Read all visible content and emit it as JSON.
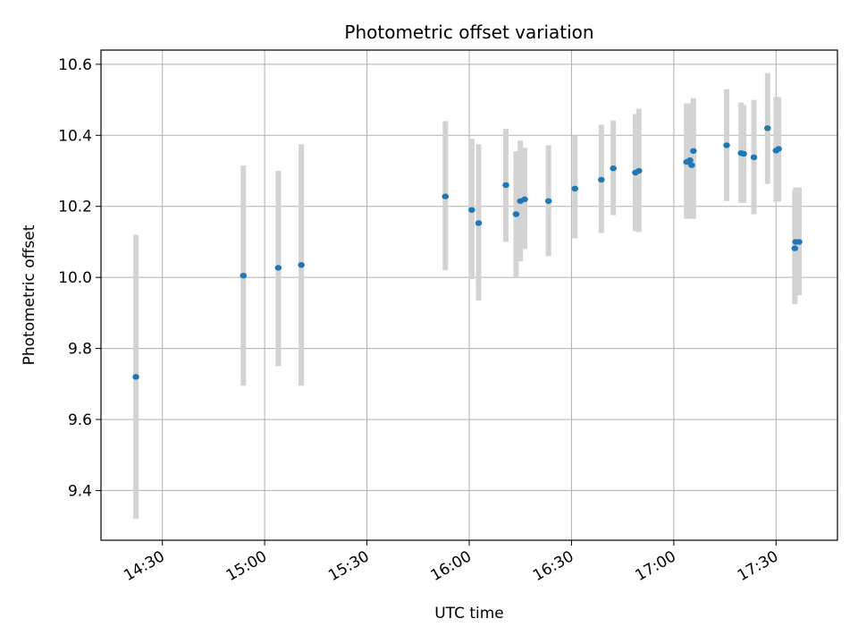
{
  "chart_data": {
    "type": "scatter",
    "title": "Photometric offset variation",
    "xlabel": "UTC time",
    "ylabel": "Photometric offset",
    "x_unit": "UTC time (HH:MM)",
    "xlim": [
      "14:12",
      "17:48"
    ],
    "ylim": [
      9.26,
      10.64
    ],
    "x_ticks": [
      "14:30",
      "15:00",
      "15:30",
      "16:00",
      "16:30",
      "17:00",
      "17:30"
    ],
    "y_ticks": [
      "9.4",
      "9.6",
      "9.8",
      "10.0",
      "10.2",
      "10.4",
      "10.6"
    ],
    "grid": true,
    "legend": "none",
    "point_color": "#1f77b4",
    "errorbar_color": "#d3d3d3",
    "series": [
      {
        "points": [
          {
            "x": "14:22:15",
            "y": 9.72,
            "y_low": 9.32,
            "y_high": 10.12
          },
          {
            "x": "14:53:45",
            "y": 10.005,
            "y_low": 9.695,
            "y_high": 10.315
          },
          {
            "x": "15:04:00",
            "y": 10.027,
            "y_low": 9.75,
            "y_high": 10.3
          },
          {
            "x": "15:10:45",
            "y": 10.035,
            "y_low": 9.695,
            "y_high": 10.375
          },
          {
            "x": "15:53:00",
            "y": 10.228,
            "y_low": 10.02,
            "y_high": 10.44
          },
          {
            "x": "16:00:45",
            "y": 10.19,
            "y_low": 9.995,
            "y_high": 10.39
          },
          {
            "x": "16:02:45",
            "y": 10.153,
            "y_low": 9.935,
            "y_high": 10.375
          },
          {
            "x": "16:10:45",
            "y": 10.26,
            "y_low": 10.1,
            "y_high": 10.418
          },
          {
            "x": "16:13:45",
            "y": 10.178,
            "y_low": 10.0,
            "y_high": 10.355
          },
          {
            "x": "16:15:00",
            "y": 10.215,
            "y_low": 10.045,
            "y_high": 10.385
          },
          {
            "x": "16:16:15",
            "y": 10.22,
            "y_low": 10.08,
            "y_high": 10.365
          },
          {
            "x": "16:23:15",
            "y": 10.215,
            "y_low": 10.06,
            "y_high": 10.372
          },
          {
            "x": "16:31:00",
            "y": 10.25,
            "y_low": 10.11,
            "y_high": 10.4
          },
          {
            "x": "16:38:45",
            "y": 10.275,
            "y_low": 10.125,
            "y_high": 10.43
          },
          {
            "x": "16:42:15",
            "y": 10.307,
            "y_low": 10.175,
            "y_high": 10.442
          },
          {
            "x": "16:48:45",
            "y": 10.295,
            "y_low": 10.13,
            "y_high": 10.46
          },
          {
            "x": "16:49:45",
            "y": 10.3,
            "y_low": 10.128,
            "y_high": 10.475
          },
          {
            "x": "17:03:45",
            "y": 10.325,
            "y_low": 10.165,
            "y_high": 10.49
          },
          {
            "x": "17:04:45",
            "y": 10.33,
            "y_low": 10.165,
            "y_high": 10.49
          },
          {
            "x": "17:05:15",
            "y": 10.316,
            "y_low": 10.165,
            "y_high": 10.49
          },
          {
            "x": "17:05:45",
            "y": 10.356,
            "y_low": 10.165,
            "y_high": 10.505
          },
          {
            "x": "17:15:30",
            "y": 10.372,
            "y_low": 10.215,
            "y_high": 10.53
          },
          {
            "x": "17:19:45",
            "y": 10.35,
            "y_low": 10.21,
            "y_high": 10.492
          },
          {
            "x": "17:20:30",
            "y": 10.348,
            "y_low": 10.21,
            "y_high": 10.485
          },
          {
            "x": "17:23:30",
            "y": 10.338,
            "y_low": 10.178,
            "y_high": 10.5
          },
          {
            "x": "17:27:30",
            "y": 10.42,
            "y_low": 10.263,
            "y_high": 10.575
          },
          {
            "x": "17:30:00",
            "y": 10.357,
            "y_low": 10.213,
            "y_high": 10.508
          },
          {
            "x": "17:30:45",
            "y": 10.362,
            "y_low": 10.213,
            "y_high": 10.508
          },
          {
            "x": "17:35:30",
            "y": 10.082,
            "y_low": 9.925,
            "y_high": 10.245
          },
          {
            "x": "17:35:45",
            "y": 10.1,
            "y_low": 9.95,
            "y_high": 10.253
          },
          {
            "x": "17:36:45",
            "y": 10.1,
            "y_low": 9.95,
            "y_high": 10.253
          }
        ]
      }
    ]
  }
}
